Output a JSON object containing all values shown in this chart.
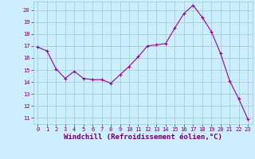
{
  "x": [
    0,
    1,
    2,
    3,
    4,
    5,
    6,
    7,
    8,
    9,
    10,
    11,
    12,
    13,
    14,
    15,
    16,
    17,
    18,
    19,
    20,
    21,
    22,
    23
  ],
  "y": [
    16.9,
    16.6,
    15.1,
    14.3,
    14.9,
    14.3,
    14.2,
    14.2,
    13.9,
    14.6,
    15.3,
    16.1,
    17.0,
    17.1,
    17.2,
    18.5,
    19.7,
    20.4,
    19.4,
    18.2,
    16.4,
    14.1,
    12.6,
    10.9
  ],
  "line_color": "#990099",
  "marker": "+",
  "marker_size": 3,
  "background_color": "#cceeff",
  "grid_color": "#99cccc",
  "xlabel": "Windchill (Refroidissement éolien,°C)",
  "xlabel_color": "#660066",
  "ylim": [
    10.5,
    20.7
  ],
  "yticks": [
    11,
    12,
    13,
    14,
    15,
    16,
    17,
    18,
    19,
    20
  ],
  "xticks": [
    0,
    1,
    2,
    3,
    4,
    5,
    6,
    7,
    8,
    9,
    10,
    11,
    12,
    13,
    14,
    15,
    16,
    17,
    18,
    19,
    20,
    21,
    22,
    23
  ],
  "tick_color": "#660066",
  "tick_fontsize": 5.0,
  "xlabel_fontsize": 6.5,
  "linewidth": 0.8
}
